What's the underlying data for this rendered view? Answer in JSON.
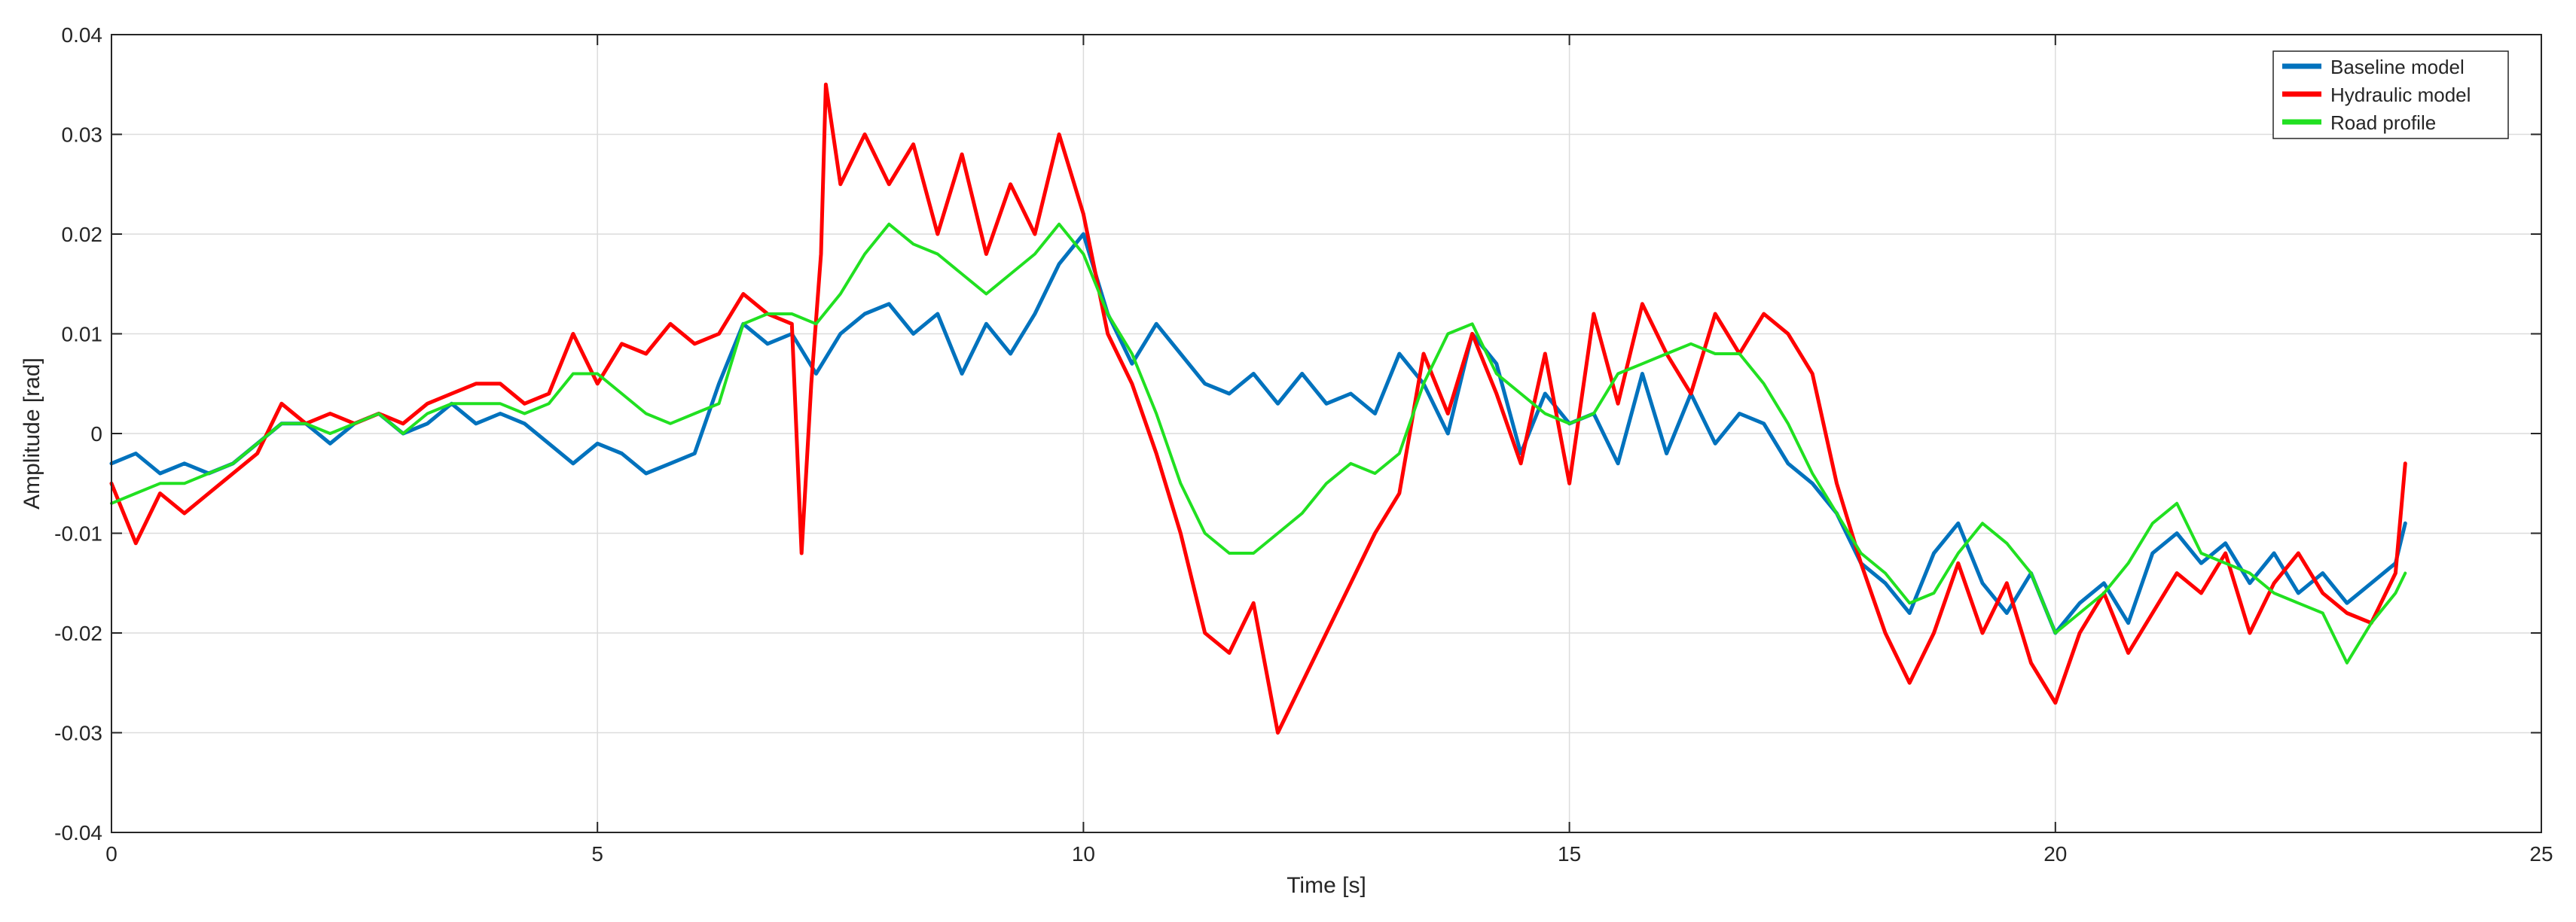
{
  "chart_data": {
    "type": "line",
    "title": "",
    "xlabel": "Time [s]",
    "ylabel": "Amplitude [rad]",
    "xlim": [
      0,
      25
    ],
    "ylim": [
      -0.04,
      0.04
    ],
    "xticks": [
      0,
      5,
      10,
      15,
      20,
      25
    ],
    "xtick_labels": [
      "0",
      "5",
      "10",
      "15",
      "20",
      "25"
    ],
    "yticks": [
      -0.04,
      -0.03,
      -0.02,
      -0.01,
      0,
      0.01,
      0.02,
      0.03,
      0.04
    ],
    "ytick_labels": [
      "-0.04",
      "-0.03",
      "-0.02",
      "-0.01",
      "0",
      "0.01",
      "0.02",
      "0.03",
      "0.04"
    ],
    "grid": true,
    "legend_position": "top-right",
    "series": [
      {
        "name": "Baseline model",
        "color": "#0072BD",
        "x": [
          0,
          0.25,
          0.5,
          0.75,
          1,
          1.25,
          1.5,
          1.75,
          2,
          2.25,
          2.5,
          2.75,
          3,
          3.25,
          3.5,
          3.75,
          4,
          4.25,
          4.5,
          4.75,
          5,
          5.25,
          5.5,
          5.75,
          6,
          6.25,
          6.5,
          6.75,
          7,
          7.25,
          7.5,
          7.75,
          8,
          8.25,
          8.5,
          8.75,
          9,
          9.25,
          9.5,
          9.75,
          10,
          10.25,
          10.5,
          10.75,
          11,
          11.25,
          11.5,
          11.75,
          12,
          12.25,
          12.5,
          12.75,
          13,
          13.25,
          13.5,
          13.75,
          14,
          14.25,
          14.5,
          14.75,
          15,
          15.25,
          15.5,
          15.75,
          16,
          16.25,
          16.5,
          16.75,
          17,
          17.25,
          17.5,
          17.75,
          18,
          18.25,
          18.5,
          18.75,
          19,
          19.25,
          19.5,
          19.75,
          20,
          20.25,
          20.5,
          20.75,
          21,
          21.25,
          21.5,
          21.75,
          22,
          22.25,
          22.5,
          22.75,
          23,
          23.25,
          23.5,
          23.6
        ],
        "y": [
          -0.003,
          -0.002,
          -0.004,
          -0.003,
          -0.004,
          -0.003,
          -0.001,
          0.001,
          0.001,
          -0.001,
          0.001,
          0.002,
          0,
          0.001,
          0.003,
          0.001,
          0.002,
          0.001,
          -0.001,
          -0.003,
          -0.001,
          -0.002,
          -0.004,
          -0.003,
          -0.002,
          0.005,
          0.011,
          0.009,
          0.01,
          0.006,
          0.01,
          0.012,
          0.013,
          0.01,
          0.012,
          0.006,
          0.011,
          0.008,
          0.012,
          0.017,
          0.02,
          0.012,
          0.007,
          0.011,
          0.008,
          0.005,
          0.004,
          0.006,
          0.003,
          0.006,
          0.003,
          0.004,
          0.002,
          0.008,
          0.005,
          0,
          0.01,
          0.007,
          -0.002,
          0.004,
          0.001,
          0.002,
          -0.003,
          0.006,
          -0.002,
          0.004,
          -0.001,
          0.002,
          0.001,
          -0.003,
          -0.005,
          -0.008,
          -0.013,
          -0.015,
          -0.018,
          -0.012,
          -0.009,
          -0.015,
          -0.018,
          -0.014,
          -0.02,
          -0.017,
          -0.015,
          -0.019,
          -0.012,
          -0.01,
          -0.013,
          -0.011,
          -0.015,
          -0.012,
          -0.016,
          -0.014,
          -0.017,
          -0.015,
          -0.013,
          -0.009
        ]
      },
      {
        "name": "Hydraulic model",
        "color": "#FF0000",
        "x": [
          0,
          0.25,
          0.5,
          0.75,
          1,
          1.25,
          1.5,
          1.75,
          2,
          2.25,
          2.5,
          2.75,
          3,
          3.25,
          3.5,
          3.75,
          4,
          4.25,
          4.5,
          4.75,
          5,
          5.25,
          5.5,
          5.75,
          6,
          6.25,
          6.5,
          6.75,
          7,
          7.1,
          7.2,
          7.3,
          7.35,
          7.5,
          7.75,
          8,
          8.25,
          8.5,
          8.75,
          9,
          9.25,
          9.5,
          9.75,
          10,
          10.25,
          10.5,
          10.75,
          11,
          11.25,
          11.5,
          11.75,
          12,
          12.25,
          12.5,
          12.75,
          13,
          13.25,
          13.5,
          13.75,
          14,
          14.25,
          14.5,
          14.75,
          15,
          15.25,
          15.5,
          15.75,
          16,
          16.25,
          16.5,
          16.75,
          17,
          17.25,
          17.5,
          17.75,
          18,
          18.25,
          18.5,
          18.75,
          19,
          19.25,
          19.5,
          19.75,
          20,
          20.25,
          20.5,
          20.75,
          21,
          21.25,
          21.5,
          21.75,
          22,
          22.25,
          22.5,
          22.75,
          23,
          23.25,
          23.5,
          23.6
        ],
        "y": [
          -0.005,
          -0.011,
          -0.006,
          -0.008,
          -0.006,
          -0.004,
          -0.002,
          0.003,
          0.001,
          0.002,
          0.001,
          0.002,
          0.001,
          0.003,
          0.004,
          0.005,
          0.005,
          0.003,
          0.004,
          0.01,
          0.005,
          0.009,
          0.008,
          0.011,
          0.009,
          0.01,
          0.014,
          0.012,
          0.011,
          -0.012,
          0.005,
          0.018,
          0.035,
          0.025,
          0.03,
          0.025,
          0.029,
          0.02,
          0.028,
          0.018,
          0.025,
          0.02,
          0.03,
          0.022,
          0.01,
          0.005,
          -0.002,
          -0.01,
          -0.02,
          -0.022,
          -0.017,
          -0.03,
          -0.025,
          -0.02,
          -0.015,
          -0.01,
          -0.006,
          0.008,
          0.002,
          0.01,
          0.004,
          -0.003,
          0.008,
          -0.005,
          0.012,
          0.003,
          0.013,
          0.008,
          0.004,
          0.012,
          0.008,
          0.012,
          0.01,
          0.006,
          -0.005,
          -0.013,
          -0.02,
          -0.025,
          -0.02,
          -0.013,
          -0.02,
          -0.015,
          -0.023,
          -0.027,
          -0.02,
          -0.016,
          -0.022,
          -0.018,
          -0.014,
          -0.016,
          -0.012,
          -0.02,
          -0.015,
          -0.012,
          -0.016,
          -0.018,
          -0.019,
          -0.014,
          -0.003
        ]
      },
      {
        "name": "Road profile",
        "color": "#21E021",
        "x": [
          0,
          0.25,
          0.5,
          0.75,
          1,
          1.25,
          1.5,
          1.75,
          2,
          2.25,
          2.5,
          2.75,
          3,
          3.25,
          3.5,
          3.75,
          4,
          4.25,
          4.5,
          4.75,
          5,
          5.25,
          5.5,
          5.75,
          6,
          6.25,
          6.5,
          6.75,
          7,
          7.25,
          7.5,
          7.75,
          8,
          8.25,
          8.5,
          8.75,
          9,
          9.25,
          9.5,
          9.75,
          10,
          10.25,
          10.5,
          10.75,
          11,
          11.25,
          11.5,
          11.75,
          12,
          12.25,
          12.5,
          12.75,
          13,
          13.25,
          13.5,
          13.75,
          14,
          14.25,
          14.5,
          14.75,
          15,
          15.25,
          15.5,
          15.75,
          16,
          16.25,
          16.5,
          16.75,
          17,
          17.25,
          17.5,
          17.75,
          18,
          18.25,
          18.5,
          18.75,
          19,
          19.25,
          19.5,
          19.75,
          20,
          20.25,
          20.5,
          20.75,
          21,
          21.25,
          21.5,
          21.75,
          22,
          22.25,
          22.5,
          22.75,
          23,
          23.25,
          23.5,
          23.6
        ],
        "y": [
          -0.007,
          -0.006,
          -0.005,
          -0.005,
          -0.004,
          -0.003,
          -0.001,
          0.001,
          0.001,
          0,
          0.001,
          0.002,
          0,
          0.002,
          0.003,
          0.003,
          0.003,
          0.002,
          0.003,
          0.006,
          0.006,
          0.004,
          0.002,
          0.001,
          0.002,
          0.003,
          0.011,
          0.012,
          0.012,
          0.011,
          0.014,
          0.018,
          0.021,
          0.019,
          0.018,
          0.016,
          0.014,
          0.016,
          0.018,
          0.021,
          0.018,
          0.012,
          0.008,
          0.002,
          -0.005,
          -0.01,
          -0.012,
          -0.012,
          -0.01,
          -0.008,
          -0.005,
          -0.003,
          -0.004,
          -0.002,
          0.005,
          0.01,
          0.011,
          0.006,
          0.004,
          0.002,
          0.001,
          0.002,
          0.006,
          0.007,
          0.008,
          0.009,
          0.008,
          0.008,
          0.005,
          0.001,
          -0.004,
          -0.008,
          -0.012,
          -0.014,
          -0.017,
          -0.016,
          -0.012,
          -0.009,
          -0.011,
          -0.014,
          -0.02,
          -0.018,
          -0.016,
          -0.013,
          -0.009,
          -0.007,
          -0.012,
          -0.013,
          -0.014,
          -0.016,
          -0.017,
          -0.018,
          -0.023,
          -0.019,
          -0.016,
          -0.014
        ]
      }
    ]
  }
}
